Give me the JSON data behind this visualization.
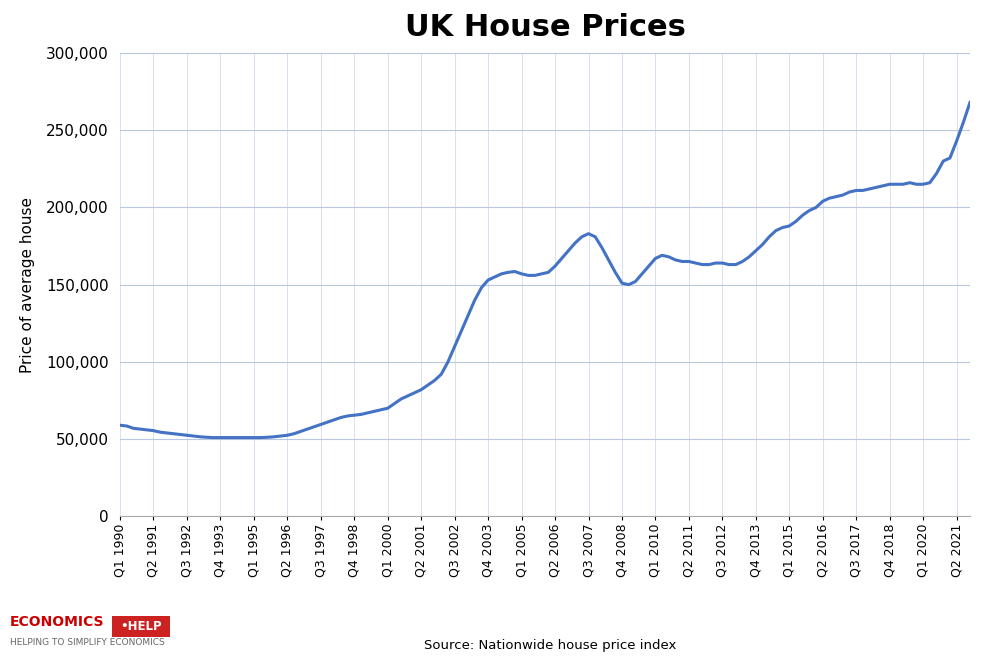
{
  "title": "UK House Prices",
  "ylabel": "Price of average house",
  "source": "Source: Nationwide house price index",
  "line_color": "#4472C4",
  "background_color": "#FFFFFF",
  "plot_bg_color": "#FFFFFF",
  "grid_color_h": "#B8C8E0",
  "grid_color_v": "#D0DCF0",
  "ylim": [
    0,
    300000
  ],
  "yticks": [
    0,
    50000,
    100000,
    150000,
    200000,
    250000,
    300000
  ],
  "tick_labels": [
    "Q1 1990",
    "Q2 1991",
    "Q3 1992",
    "Q4 1993",
    "Q1 1995",
    "Q2 1996",
    "Q3 1997",
    "Q4 1998",
    "Q1 2000",
    "Q2 2001",
    "Q3 2002",
    "Q4 2003",
    "Q1 2005",
    "Q2 2006",
    "Q3 2007",
    "Q4 2008",
    "Q1 2010",
    "Q2 2011",
    "Q3 2012",
    "Q4 2013",
    "Q1 2015",
    "Q2 2016",
    "Q3 2017",
    "Q4 2018",
    "Q1 2020",
    "Q2 2021"
  ],
  "raw_data": {
    "Q1 1990": 59000,
    "Q2 1990": 58500,
    "Q3 1990": 57000,
    "Q4 1990": 56500,
    "Q1 1991": 56000,
    "Q2 1991": 55500,
    "Q3 1991": 54500,
    "Q4 1991": 54000,
    "Q1 1992": 53500,
    "Q2 1992": 53000,
    "Q3 1992": 52500,
    "Q4 1992": 52000,
    "Q1 1993": 51500,
    "Q2 1993": 51200,
    "Q3 1993": 51000,
    "Q4 1993": 51000,
    "Q1 1994": 51000,
    "Q2 1994": 51000,
    "Q3 1994": 51000,
    "Q4 1994": 51000,
    "Q1 1995": 51000,
    "Q2 1995": 51000,
    "Q3 1995": 51200,
    "Q4 1995": 51500,
    "Q1 1996": 52000,
    "Q2 1996": 52500,
    "Q3 1996": 53500,
    "Q4 1996": 55000,
    "Q1 1997": 56500,
    "Q2 1997": 58000,
    "Q3 1997": 59500,
    "Q4 1997": 61000,
    "Q1 1998": 62500,
    "Q2 1998": 64000,
    "Q3 1998": 65000,
    "Q4 1998": 65500,
    "Q1 1999": 66000,
    "Q2 1999": 67000,
    "Q3 1999": 68000,
    "Q4 1999": 69000,
    "Q1 2000": 70000,
    "Q2 2000": 73000,
    "Q3 2000": 76000,
    "Q4 2000": 78000,
    "Q1 2001": 80000,
    "Q2 2001": 82000,
    "Q3 2001": 85000,
    "Q4 2001": 88000,
    "Q1 2002": 92000,
    "Q2 2002": 100000,
    "Q3 2002": 110000,
    "Q4 2002": 120000,
    "Q1 2003": 130000,
    "Q2 2003": 140000,
    "Q3 2003": 148000,
    "Q4 2003": 153000,
    "Q1 2004": 155000,
    "Q2 2004": 157000,
    "Q3 2004": 158000,
    "Q4 2004": 158500,
    "Q1 2005": 157000,
    "Q2 2005": 156000,
    "Q3 2005": 156000,
    "Q4 2005": 157000,
    "Q1 2006": 158000,
    "Q2 2006": 162000,
    "Q3 2006": 167000,
    "Q4 2006": 172000,
    "Q1 2007": 177000,
    "Q2 2007": 181000,
    "Q3 2007": 183000,
    "Q4 2007": 181000,
    "Q1 2008": 174000,
    "Q2 2008": 166000,
    "Q3 2008": 158000,
    "Q4 2008": 151000,
    "Q1 2009": 150000,
    "Q2 2009": 152000,
    "Q3 2009": 157000,
    "Q4 2009": 162000,
    "Q1 2010": 167000,
    "Q2 2010": 169000,
    "Q3 2010": 168000,
    "Q4 2010": 166000,
    "Q1 2011": 165000,
    "Q2 2011": 165000,
    "Q3 2011": 164000,
    "Q4 2011": 163000,
    "Q1 2012": 163000,
    "Q2 2012": 164000,
    "Q3 2012": 164000,
    "Q4 2012": 163000,
    "Q1 2013": 163000,
    "Q2 2013": 165000,
    "Q3 2013": 168000,
    "Q4 2013": 172000,
    "Q1 2014": 176000,
    "Q2 2014": 181000,
    "Q3 2014": 185000,
    "Q4 2014": 187000,
    "Q1 2015": 188000,
    "Q2 2015": 191000,
    "Q3 2015": 195000,
    "Q4 2015": 198000,
    "Q1 2016": 200000,
    "Q2 2016": 204000,
    "Q3 2016": 206000,
    "Q4 2016": 207000,
    "Q1 2017": 208000,
    "Q2 2017": 210000,
    "Q3 2017": 211000,
    "Q4 2017": 211000,
    "Q1 2018": 212000,
    "Q2 2018": 213000,
    "Q3 2018": 214000,
    "Q4 2018": 215000,
    "Q1 2019": 215000,
    "Q2 2019": 215000,
    "Q3 2019": 216000,
    "Q4 2019": 215000,
    "Q1 2020": 215000,
    "Q2 2020": 216000,
    "Q3 2020": 222000,
    "Q4 2020": 230000,
    "Q1 2021": 232000,
    "Q2 2021": 243000,
    "Q3 2021": 255000,
    "Q4 2021": 268000
  }
}
